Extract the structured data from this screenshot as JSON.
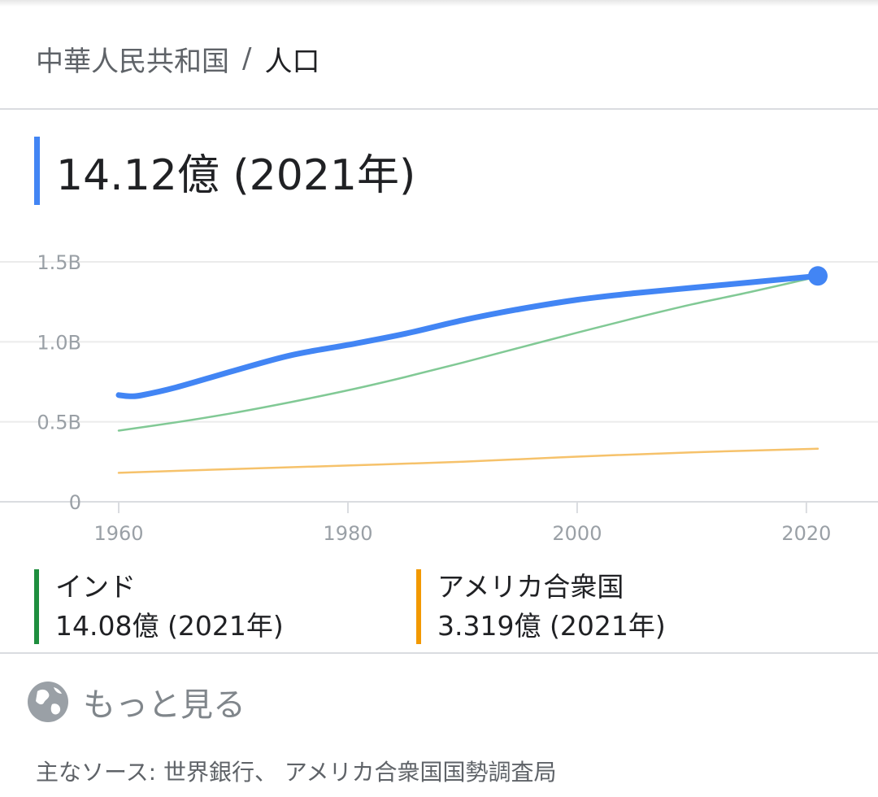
{
  "breadcrumb": {
    "entity": "中華人民共和国",
    "separator": "/",
    "attribute": "人口"
  },
  "headline": {
    "value": "14.12億 (2021年)",
    "accent_color": "#4285f4"
  },
  "legend": [
    {
      "name": "インド",
      "value": "14.08億 (2021年)",
      "color": "#1e8e3e"
    },
    {
      "name": "アメリカ合衆国",
      "value": "3.319億 (2021年)",
      "color": "#f29900"
    }
  ],
  "more": {
    "icon": "globe-icon",
    "label": "もっと見る"
  },
  "sources": {
    "label": "主なソース:",
    "text": "世界銀行、 アメリカ合衆国国勢調査局"
  },
  "chart_data": {
    "type": "line",
    "title": "",
    "xlabel": "",
    "ylabel": "",
    "xlim": [
      1960,
      2021
    ],
    "ylim": [
      0,
      1.5
    ],
    "x_ticks": [
      {
        "value": 1960,
        "label": "1960"
      },
      {
        "value": 1980,
        "label": "1980"
      },
      {
        "value": 2000,
        "label": "2000"
      },
      {
        "value": 2020,
        "label": "2020"
      }
    ],
    "y_ticks": [
      {
        "value": 0,
        "label": "0"
      },
      {
        "value": 0.5,
        "label": "0.5B"
      },
      {
        "value": 1.0,
        "label": "1.0B"
      },
      {
        "value": 1.5,
        "label": "1.5B"
      }
    ],
    "grid": true,
    "series": [
      {
        "name": "中華人民共和国",
        "color": "#4285f4",
        "emphasis": true,
        "x": [
          1960,
          1961,
          1962,
          1965,
          1970,
          1975,
          1980,
          1985,
          1990,
          1995,
          2000,
          2005,
          2010,
          2015,
          2021
        ],
        "y": [
          0.667,
          0.66,
          0.666,
          0.715,
          0.818,
          0.916,
          0.981,
          1.051,
          1.135,
          1.205,
          1.263,
          1.304,
          1.338,
          1.371,
          1.412
        ]
      },
      {
        "name": "インド",
        "color": "#81c995",
        "emphasis": false,
        "x": [
          1960,
          1965,
          1970,
          1975,
          1980,
          1985,
          1990,
          1995,
          2000,
          2005,
          2010,
          2015,
          2021
        ],
        "y": [
          0.445,
          0.497,
          0.555,
          0.623,
          0.697,
          0.78,
          0.87,
          0.964,
          1.057,
          1.148,
          1.234,
          1.31,
          1.408
        ]
      },
      {
        "name": "アメリカ合衆国",
        "color": "#f6c26b",
        "emphasis": false,
        "x": [
          1960,
          1970,
          1980,
          1990,
          2000,
          2010,
          2021
        ],
        "y": [
          0.181,
          0.205,
          0.227,
          0.25,
          0.282,
          0.309,
          0.332
        ]
      }
    ]
  }
}
